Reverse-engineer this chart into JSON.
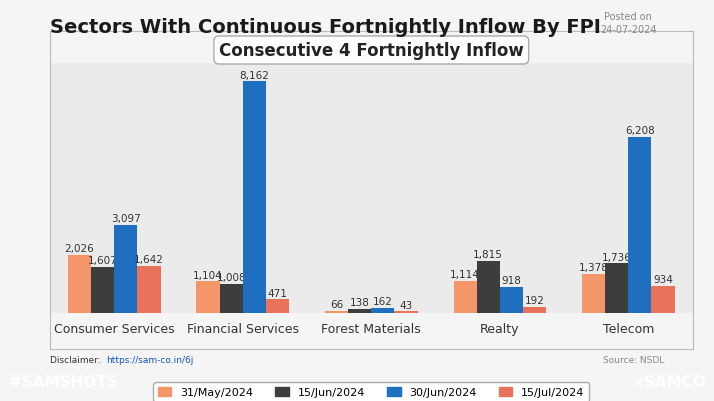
{
  "title": "Sectors With Continuous Fortnightly Inflow By FPI",
  "chart_title": "Consecutive 4 Fortnightly Inflow",
  "posted_on": "Posted on\n24-07-2024",
  "source": "Source: NSDL",
  "disclaimer_text": "Disclaimer: ",
  "disclaimer_link": "https://sam-co.in/6j",
  "categories": [
    "Consumer Services",
    "Financial Services",
    "Forest Materials",
    "Realty",
    "Telecom"
  ],
  "series": [
    {
      "label": "31/May/2024",
      "color": "#F4956A",
      "values": [
        2026,
        1104,
        66,
        1114,
        1378
      ]
    },
    {
      "label": "15/Jun/2024",
      "color": "#3D3D3D",
      "values": [
        1607,
        1008,
        138,
        1815,
        1736
      ]
    },
    {
      "label": "30/Jun/2024",
      "color": "#1E6FBF",
      "values": [
        3097,
        8162,
        162,
        918,
        6208
      ]
    },
    {
      "label": "15/Jul/2024",
      "color": "#E8735A",
      "values": [
        1642,
        471,
        43,
        192,
        934
      ]
    }
  ],
  "chart_bg": "#EBEBEB",
  "outer_bg": "#F5F5F5",
  "footer_bg": "#F4956A",
  "footer_text_color": "#FFFFFF",
  "ylim": [
    0,
    8800
  ],
  "bar_width": 0.18,
  "value_fontsize": 7.5,
  "label_fontsize": 9,
  "legend_fontsize": 8,
  "title_fontsize": 14,
  "chart_title_fontsize": 12
}
